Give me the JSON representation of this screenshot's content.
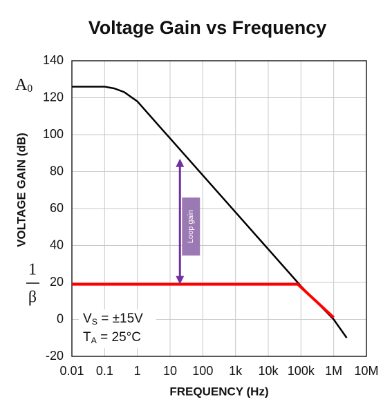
{
  "chart_data": {
    "type": "line",
    "title": "Voltage Gain vs Frequency",
    "x_label": "FREQUENCY (Hz)",
    "y_label": "VOLTAGE GAIN (dB)",
    "xscale": "log",
    "grid": true,
    "xlim": [
      0.01,
      10000000
    ],
    "ylim": [
      -20,
      140
    ],
    "xticks": [
      0.01,
      0.1,
      1,
      10,
      100,
      {
        "value": 1000,
        "label": "1k"
      },
      {
        "value": 10000,
        "label": "10k"
      },
      {
        "value": 100000,
        "label": "100k"
      },
      {
        "value": 1000000,
        "label": "1M"
      },
      {
        "value": 10000000,
        "label": "10M"
      }
    ],
    "yticks": [
      -20,
      0,
      20,
      40,
      60,
      80,
      100,
      120,
      140
    ],
    "series": [
      {
        "color": "#000000",
        "x": [
          0.01,
          0.1,
          0.2,
          0.4,
          1,
          2,
          5,
          10,
          100,
          1000,
          10000,
          100000,
          1000000,
          2500000
        ],
        "values": [
          126,
          126,
          125,
          123,
          118,
          112,
          104,
          98,
          78,
          58,
          38,
          18,
          0,
          -10
        ]
      },
      {
        "color": "#ff0000",
        "x": [
          0.01,
          80000,
          1000000
        ],
        "values": [
          19,
          19,
          1
        ]
      }
    ],
    "annotations": {
      "a0": {
        "text": "A",
        "sub": "0"
      },
      "inverse_beta": {
        "numerator": "1",
        "denominator": "β"
      },
      "vs": {
        "text": "V",
        "sub": "S",
        "rest": " = ±15V"
      },
      "ta": {
        "text": "T",
        "sub": "A",
        "rest": " = 25°C"
      }
    },
    "loop_gain_arrow": {
      "x": 20,
      "y": [
        19,
        87
      ],
      "label": "Loop gain",
      "color": "#7030a0"
    }
  }
}
